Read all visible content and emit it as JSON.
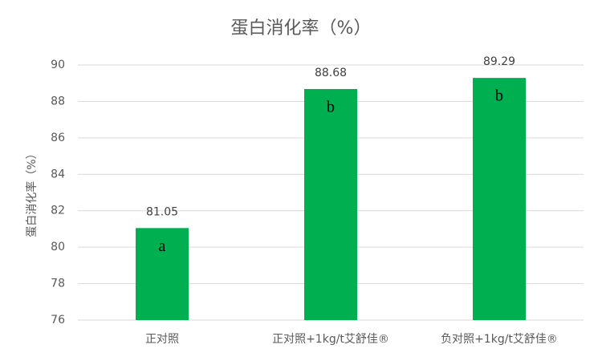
{
  "chart_data": {
    "type": "bar",
    "title": "蛋白消化率（%）",
    "y_label": "蛋白消化率（%）",
    "categories": [
      "正对照",
      "正对照+1kg/t艾舒佳®",
      "负对照+1kg/t艾舒佳®"
    ],
    "values": [
      81.05,
      88.68,
      89.29
    ],
    "annotations": [
      "a",
      "b",
      "b"
    ],
    "color": "#00b050",
    "ylim": [
      76,
      90
    ],
    "yticks": [
      76,
      78,
      80,
      82,
      84,
      86,
      88,
      90
    ],
    "grid": true
  }
}
